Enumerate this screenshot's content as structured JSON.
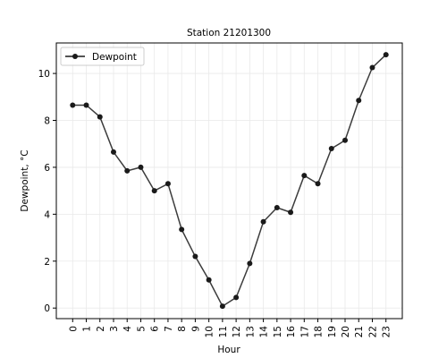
{
  "chart_data": {
    "type": "line",
    "title": "Station 21201300",
    "xlabel": "Hour",
    "ylabel": "Dewpoint, °C",
    "x": [
      0,
      1,
      2,
      3,
      4,
      5,
      6,
      7,
      8,
      9,
      10,
      11,
      12,
      13,
      14,
      15,
      16,
      17,
      18,
      19,
      20,
      21,
      22,
      23
    ],
    "x_tick_labels": [
      "0",
      "1",
      "2",
      "3",
      "4",
      "5",
      "6",
      "7",
      "8",
      "9",
      "10",
      "11",
      "12",
      "13",
      "14",
      "15",
      "16",
      "17",
      "18",
      "19",
      "20",
      "21",
      "22",
      "23"
    ],
    "y_ticks": [
      0,
      2,
      4,
      6,
      8,
      10
    ],
    "y_tick_labels": [
      "0",
      "2",
      "4",
      "6",
      "8",
      "10"
    ],
    "xlim": [
      -1.2,
      24.2
    ],
    "ylim": [
      -0.45,
      11.3
    ],
    "grid": true,
    "legend_position": "top-left",
    "series": [
      {
        "name": "Dewpoint",
        "color": "#1a1a1a",
        "marker": "circle",
        "values": [
          8.65,
          8.65,
          8.15,
          6.65,
          5.85,
          6.0,
          5.0,
          5.3,
          3.35,
          2.2,
          1.2,
          0.08,
          0.45,
          1.9,
          3.68,
          4.28,
          4.08,
          5.65,
          5.3,
          6.8,
          7.15,
          8.85,
          10.25,
          10.8
        ]
      }
    ]
  }
}
